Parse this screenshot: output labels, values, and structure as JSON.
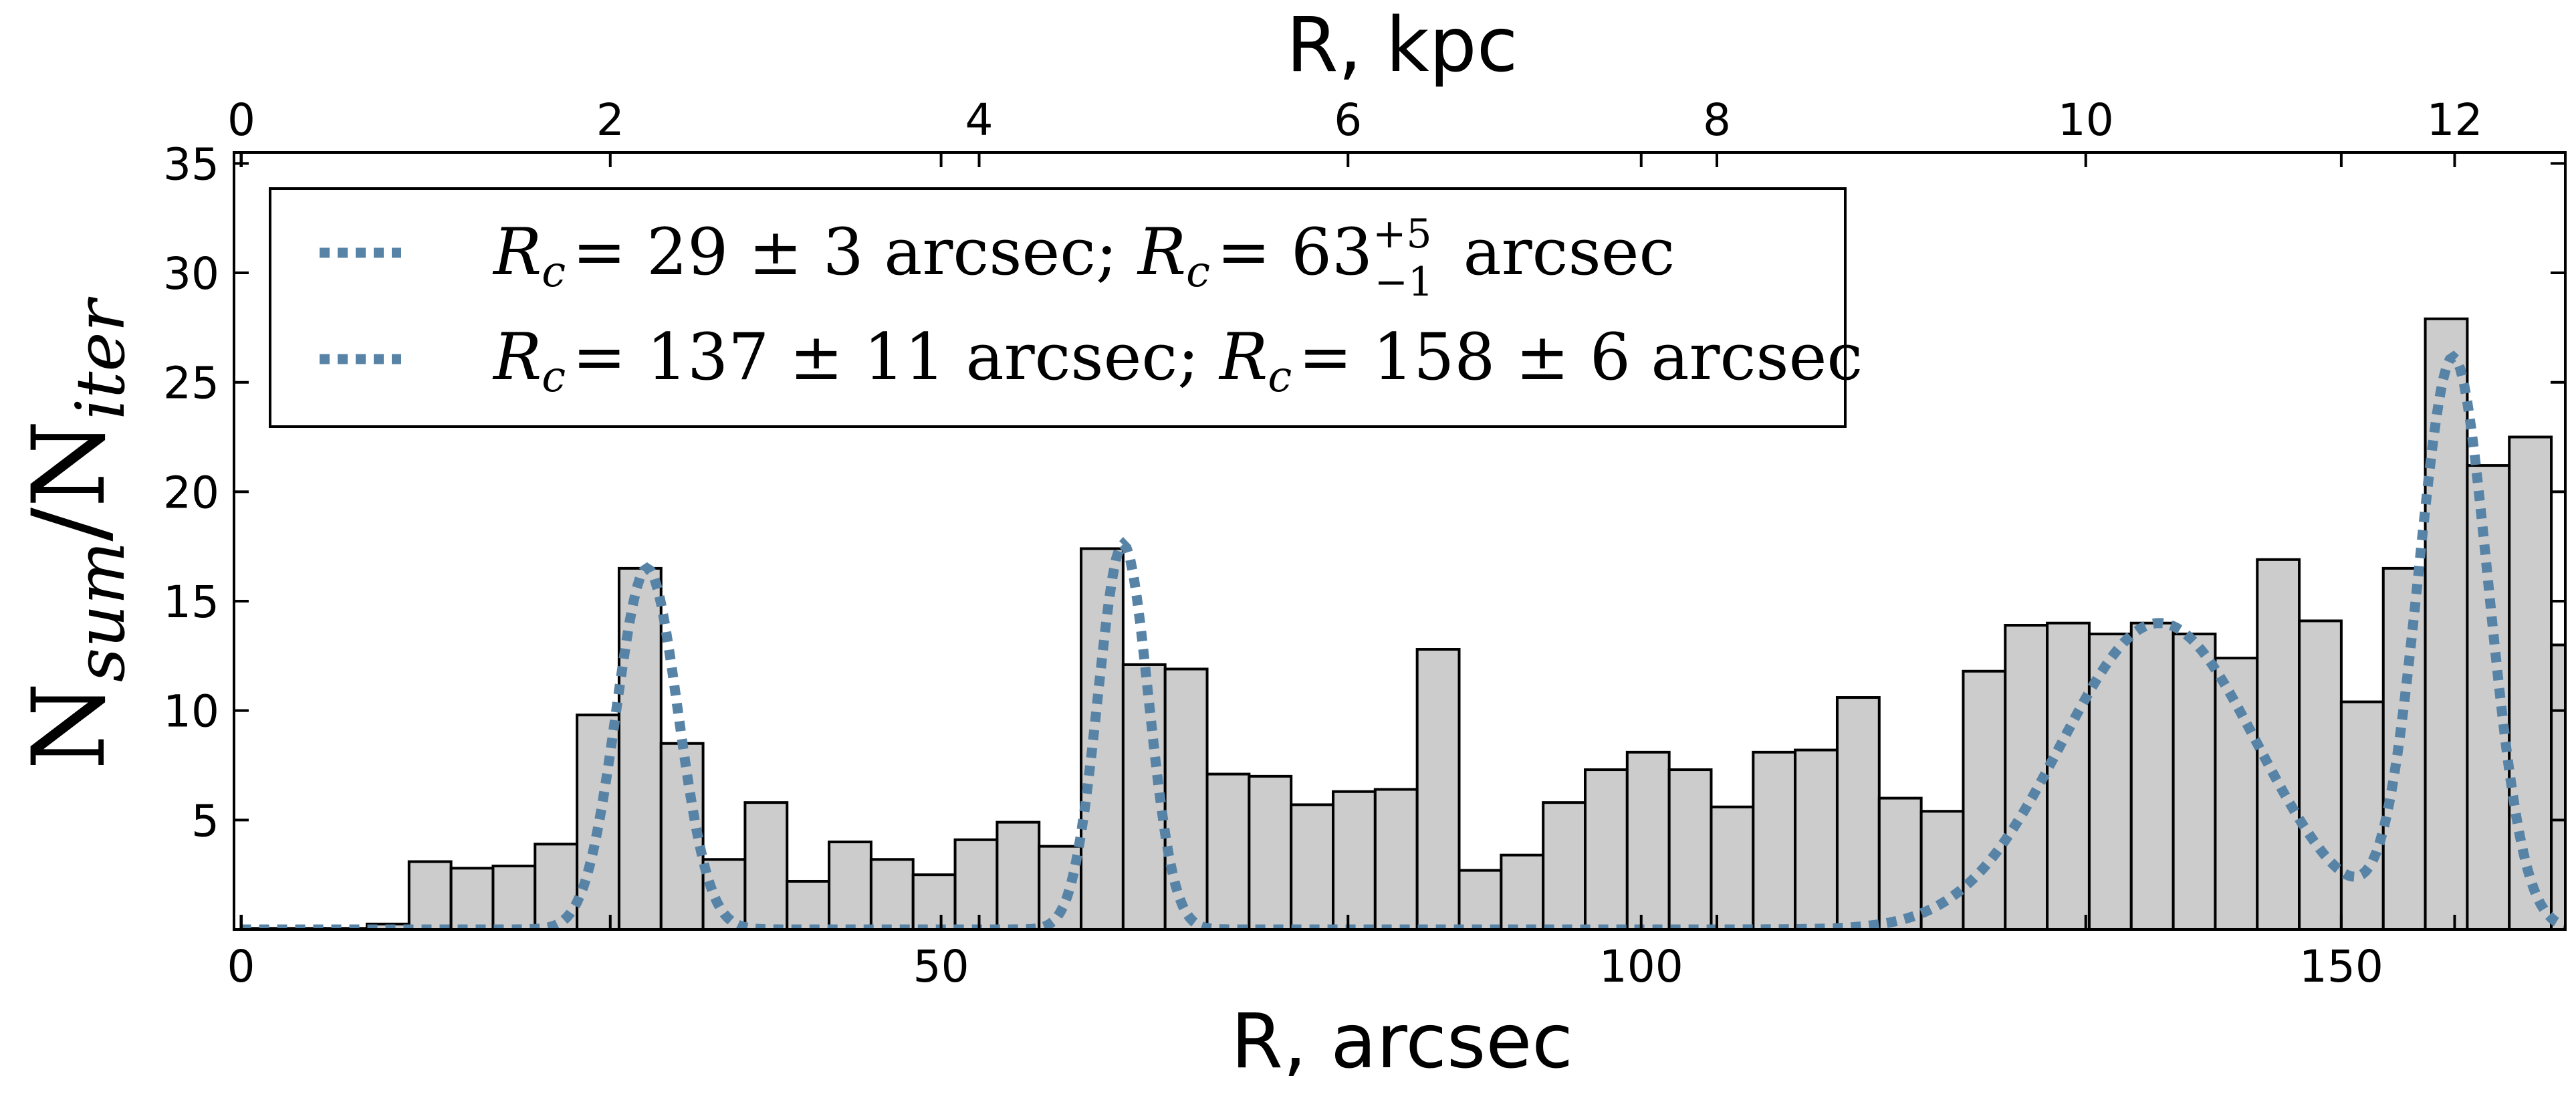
{
  "chart_data": {
    "type": "bar",
    "xlabel": "R, arcsec",
    "x2label": "R, kpc",
    "ylabel": "N_sum / N_iter",
    "xlim": [
      -0.5,
      166
    ],
    "ylim": [
      0,
      35.5
    ],
    "x2lim": [
      -0.04,
      12.6
    ],
    "xticks": [
      0,
      50,
      100,
      150
    ],
    "x2ticks": [
      0,
      2,
      4,
      6,
      8,
      10,
      12
    ],
    "yticks": [
      5,
      10,
      15,
      20,
      25,
      30,
      35
    ],
    "grid": false,
    "legend_position": "top-left",
    "bar_color": "#cccccc",
    "bar_edge_color": "#000000",
    "curve_color": "#5783a6",
    "bin_width": 3,
    "bins": [
      {
        "x": 1.5,
        "value": 0.05
      },
      {
        "x": 4.5,
        "value": 0.05
      },
      {
        "x": 7.5,
        "value": 0.05
      },
      {
        "x": 10.5,
        "value": 0.25
      },
      {
        "x": 13.5,
        "value": 3.1
      },
      {
        "x": 16.5,
        "value": 2.8
      },
      {
        "x": 19.5,
        "value": 2.9
      },
      {
        "x": 22.5,
        "value": 3.9
      },
      {
        "x": 25.5,
        "value": 9.8
      },
      {
        "x": 28.5,
        "value": 16.5
      },
      {
        "x": 31.5,
        "value": 8.5
      },
      {
        "x": 34.5,
        "value": 3.2
      },
      {
        "x": 37.5,
        "value": 5.8
      },
      {
        "x": 40.5,
        "value": 2.2
      },
      {
        "x": 43.5,
        "value": 4.0
      },
      {
        "x": 46.5,
        "value": 3.2
      },
      {
        "x": 49.5,
        "value": 2.5
      },
      {
        "x": 52.5,
        "value": 4.1
      },
      {
        "x": 55.5,
        "value": 4.9
      },
      {
        "x": 58.5,
        "value": 3.8
      },
      {
        "x": 61.5,
        "value": 17.4
      },
      {
        "x": 64.5,
        "value": 12.1
      },
      {
        "x": 67.5,
        "value": 11.9
      },
      {
        "x": 70.5,
        "value": 7.1
      },
      {
        "x": 73.5,
        "value": 7.0
      },
      {
        "x": 76.5,
        "value": 5.7
      },
      {
        "x": 79.5,
        "value": 6.3
      },
      {
        "x": 82.5,
        "value": 6.4
      },
      {
        "x": 85.5,
        "value": 12.8
      },
      {
        "x": 88.5,
        "value": 2.7
      },
      {
        "x": 91.5,
        "value": 3.4
      },
      {
        "x": 94.5,
        "value": 5.8
      },
      {
        "x": 97.5,
        "value": 7.3
      },
      {
        "x": 100.5,
        "value": 8.1
      },
      {
        "x": 103.5,
        "value": 7.3
      },
      {
        "x": 106.5,
        "value": 5.6
      },
      {
        "x": 109.5,
        "value": 8.1
      },
      {
        "x": 112.5,
        "value": 8.2
      },
      {
        "x": 115.5,
        "value": 10.6
      },
      {
        "x": 118.5,
        "value": 6.0
      },
      {
        "x": 121.5,
        "value": 5.4
      },
      {
        "x": 124.5,
        "value": 11.8
      },
      {
        "x": 127.5,
        "value": 13.9
      },
      {
        "x": 130.5,
        "value": 14.0
      },
      {
        "x": 133.5,
        "value": 13.5
      },
      {
        "x": 136.5,
        "value": 14.0
      },
      {
        "x": 139.5,
        "value": 13.5
      },
      {
        "x": 142.5,
        "value": 12.4
      },
      {
        "x": 145.5,
        "value": 16.9
      },
      {
        "x": 148.5,
        "value": 14.1
      },
      {
        "x": 151.5,
        "value": 10.4
      },
      {
        "x": 154.5,
        "value": 16.5
      },
      {
        "x": 157.5,
        "value": 27.9
      },
      {
        "x": 160.5,
        "value": 21.2
      },
      {
        "x": 163.5,
        "value": 22.5
      },
      {
        "x": 166.5,
        "value": 13.0
      }
    ],
    "fit_components": [
      {
        "center": 29,
        "amplitude": 16.5,
        "sigma": 2.2
      },
      {
        "center": 63,
        "amplitude": 17.6,
        "sigma": 1.8
      },
      {
        "center": 137,
        "amplitude": 14.0,
        "sigma": 7.0
      },
      {
        "center": 158,
        "amplitude": 26.0,
        "sigma": 2.5
      }
    ],
    "legend": [
      {
        "label": "R_c = 29 ± 3 arcsec; R_c = 63 +5 −1 arcsec",
        "part1": "= 29 ± 3 arcsec; ",
        "part2": "= 63",
        "sup": "+5",
        "sub": "−1",
        "part3": " arcsec"
      },
      {
        "label": "R_c = 137 ± 11 arcsec; R_c = 158 ± 6 arcsec",
        "part1": "= 137 ± 11 arcsec; ",
        "part2": "= 158 ± 6 arcsec"
      }
    ]
  },
  "labels": {
    "xlabel": "R, arcsec",
    "x2label": "R, kpc",
    "ylabel_main": "N",
    "ylabel_sub1": "sum",
    "ylabel_slash": "/N",
    "ylabel_sub2": "iter",
    "legend_sym": "R",
    "legend_sym_sub": "c"
  }
}
